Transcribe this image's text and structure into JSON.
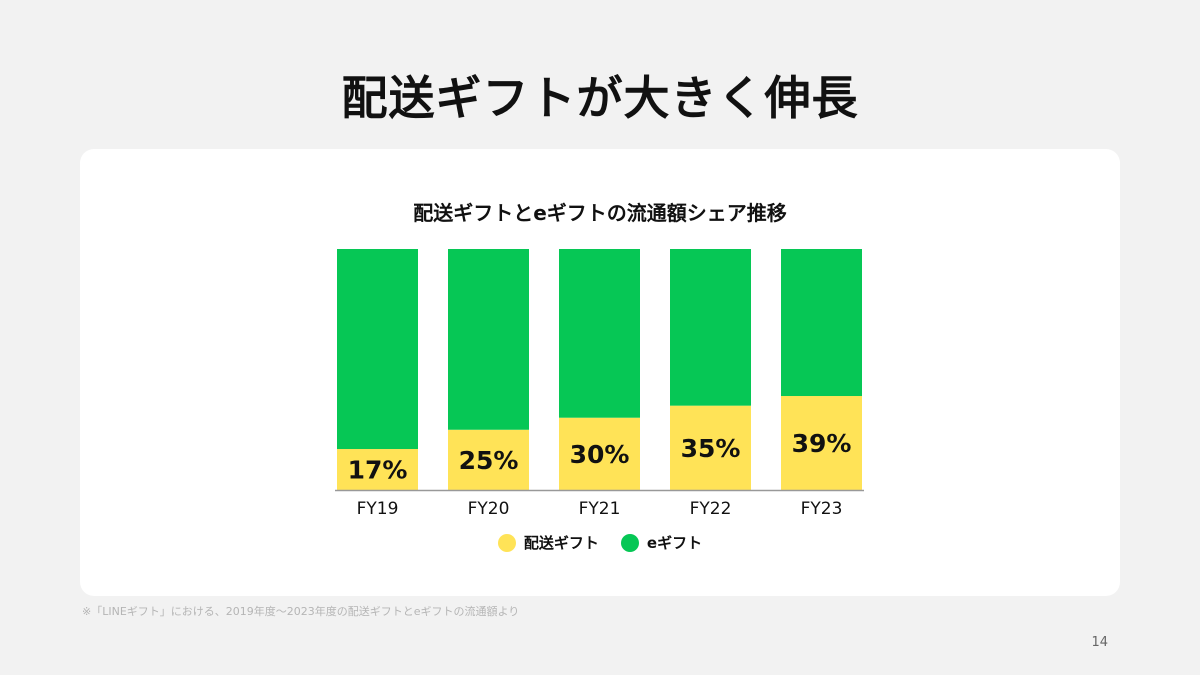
{
  "slide": {
    "title": "配送ギフトが大きく伸長",
    "footnote": "※「LINEギフト」における、2019年度〜2023年度の配送ギフトとeギフトの流通額より",
    "page_number": "14"
  },
  "colors": {
    "delivery": "#ffe357",
    "egift": "#06c755",
    "card": "#ffffff",
    "background": "#f2f2f2"
  },
  "chart_data": {
    "type": "bar",
    "stacked": true,
    "title": "配送ギフトとeギフトの流通額シェア推移",
    "categories": [
      "FY19",
      "FY20",
      "FY21",
      "FY22",
      "FY23"
    ],
    "series": [
      {
        "name": "配送ギフト",
        "values": [
          17,
          25,
          30,
          35,
          39
        ]
      },
      {
        "name": "eギフト",
        "values": [
          83,
          75,
          70,
          65,
          61
        ]
      }
    ],
    "data_labels": [
      "17%",
      "25%",
      "30%",
      "35%",
      "39%"
    ],
    "ylim": [
      0,
      100
    ],
    "grid": false,
    "legend": "bottom-center"
  }
}
